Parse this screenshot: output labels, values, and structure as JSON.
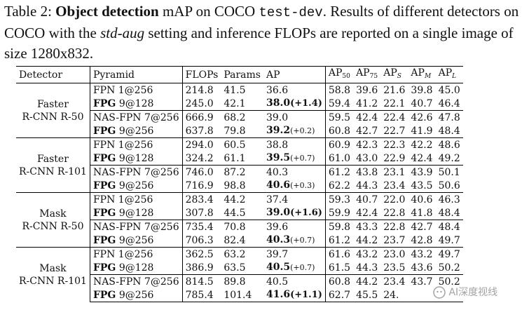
{
  "caption": {
    "label": "Table 2:",
    "title_bold": "Object detection",
    "text1": " mAP on COCO ",
    "dataset_mono": "test-dev",
    "text2": ". Results of different detectors on COCO with the ",
    "setting_italic": "std-aug",
    "text3": " setting and inference FLOPs are reported on a single image of size 1280x832."
  },
  "table": {
    "headers": {
      "detector": "Detector",
      "pyramid": "Pyramid",
      "flops": "FLOPs",
      "params": "Params",
      "ap": "AP",
      "ap50": "AP",
      "ap50_sub": "50",
      "ap75": "AP",
      "ap75_sub": "75",
      "aps": "AP",
      "aps_sub": "S",
      "apm": "AP",
      "apm_sub": "M",
      "apl": "AP",
      "apl_sub": "L"
    },
    "groups": [
      {
        "detector_line1": "Faster",
        "detector_line2": "R-CNN R-50",
        "rows": [
          {
            "pyr_bold": "",
            "pyr": "FPN 1@256",
            "flops": "214.8",
            "params": "41.5",
            "ap": "36.6",
            "delta": "",
            "ap50": "58.8",
            "ap75": "39.6",
            "aps": "21.6",
            "apm": "39.8",
            "apl": "45.0"
          },
          {
            "pyr_bold": "FPG",
            "pyr": " 9@128",
            "flops": "245.0",
            "params": "42.1",
            "ap": "38.0",
            "delta": "(+1.4)",
            "ap50": "59.4",
            "ap75": "41.2",
            "aps": "22.1",
            "apm": "40.7",
            "apl": "46.4"
          },
          {
            "pyr_bold": "",
            "pyr": "NAS-FPN 7@256",
            "flops": "666.9",
            "params": "68.2",
            "ap": "39.0",
            "delta": "",
            "ap50": "59.5",
            "ap75": "42.4",
            "aps": "22.4",
            "apm": "42.6",
            "apl": "47.8"
          },
          {
            "pyr_bold": "FPG",
            "pyr": " 9@256",
            "flops": "637.8",
            "params": "79.8",
            "ap": "39.2",
            "delta": "(+0.2)",
            "ap50": "60.8",
            "ap75": "42.7",
            "aps": "22.7",
            "apm": "41.9",
            "apl": "48.4"
          }
        ]
      },
      {
        "detector_line1": "Faster",
        "detector_line2": "R-CNN R-101",
        "rows": [
          {
            "pyr_bold": "",
            "pyr": "FPN 1@256",
            "flops": "294.0",
            "params": "60.5",
            "ap": "38.8",
            "delta": "",
            "ap50": "60.9",
            "ap75": "42.3",
            "aps": "22.3",
            "apm": "42.2",
            "apl": "48.6"
          },
          {
            "pyr_bold": "FPG",
            "pyr": " 9@128",
            "flops": "324.2",
            "params": "61.1",
            "ap": "39.5",
            "delta": "(+0.7)",
            "ap50": "61.0",
            "ap75": "43.0",
            "aps": "22.9",
            "apm": "42.4",
            "apl": "49.2"
          },
          {
            "pyr_bold": "",
            "pyr": "NAS-FPN 7@256",
            "flops": "746.0",
            "params": "87.2",
            "ap": "40.3",
            "delta": "",
            "ap50": "61.2",
            "ap75": "43.8",
            "aps": "23.1",
            "apm": "43.9",
            "apl": "50.1"
          },
          {
            "pyr_bold": "FPG",
            "pyr": " 9@256",
            "flops": "716.9",
            "params": "98.8",
            "ap": "40.6",
            "delta": "(+0.3)",
            "ap50": "62.2",
            "ap75": "44.3",
            "aps": "23.4",
            "apm": "43.5",
            "apl": "50.6"
          }
        ]
      },
      {
        "detector_line1": "Mask",
        "detector_line2": "R-CNN R-50",
        "rows": [
          {
            "pyr_bold": "",
            "pyr": "FPN 1@256",
            "flops": "283.4",
            "params": "44.2",
            "ap": "37.4",
            "delta": "",
            "ap50": "59.3",
            "ap75": "40.7",
            "aps": "22.0",
            "apm": "40.6",
            "apl": "46.3"
          },
          {
            "pyr_bold": "FPG",
            "pyr": " 9@128",
            "flops": "307.8",
            "params": "44.5",
            "ap": "39.0",
            "delta": "(+1.6)",
            "ap50": "59.9",
            "ap75": "42.4",
            "aps": "22.8",
            "apm": "41.8",
            "apl": "48.4"
          },
          {
            "pyr_bold": "",
            "pyr": "NAS-FPN 7@256",
            "flops": "735.4",
            "params": "70.8",
            "ap": "39.6",
            "delta": "",
            "ap50": "59.8",
            "ap75": "43.3",
            "aps": "22.8",
            "apm": "42.7",
            "apl": "48.4"
          },
          {
            "pyr_bold": "FPG",
            "pyr": " 9@256",
            "flops": "706.3",
            "params": "82.4",
            "ap": "40.3",
            "delta": "(+0.7)",
            "ap50": "61.2",
            "ap75": "44.2",
            "aps": "23.7",
            "apm": "42.8",
            "apl": "49.7"
          }
        ]
      },
      {
        "detector_line1": "Mask",
        "detector_line2": "R-CNN R-101",
        "rows": [
          {
            "pyr_bold": "",
            "pyr": "FPN 1@256",
            "flops": "362.5",
            "params": "63.2",
            "ap": "39.7",
            "delta": "",
            "ap50": "61.6",
            "ap75": "43.2",
            "aps": "23.0",
            "apm": "43.2",
            "apl": "49.7"
          },
          {
            "pyr_bold": "FPG",
            "pyr": " 9@128",
            "flops": "386.9",
            "params": "63.5",
            "ap": "40.5",
            "delta": "(+0.7)",
            "ap50": "61.5",
            "ap75": "44.3",
            "aps": "23.5",
            "apm": "43.6",
            "apl": "50.2"
          },
          {
            "pyr_bold": "",
            "pyr": "NAS-FPN 7@256",
            "flops": "814.5",
            "params": "89.8",
            "ap": "40.5",
            "delta": "",
            "ap50": "60.8",
            "ap75": "44.2",
            "aps": "23.4",
            "apm": "43.7",
            "apl": "50.2"
          },
          {
            "pyr_bold": "FPG",
            "pyr": " 9@256",
            "flops": "785.4",
            "params": "101.4",
            "ap": "41.6",
            "delta": "(+1.1)",
            "ap50": "62.7",
            "ap75": "45.5",
            "aps": "24.",
            "apm": "",
            "apl": ""
          }
        ]
      }
    ]
  },
  "watermark": {
    "icon": "wechat-logo-icon",
    "text": "AI深度视线"
  }
}
